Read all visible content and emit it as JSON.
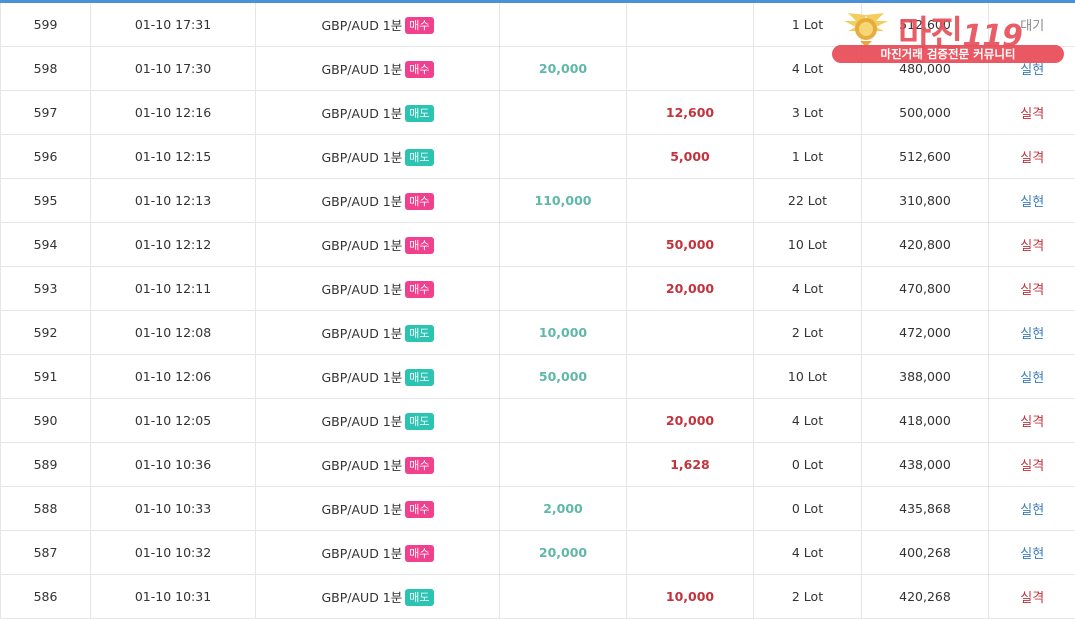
{
  "logo": {
    "brand": "마진",
    "brand_suffix": "119",
    "tagline": "마진거래 검증전문 커뮤니티",
    "color": "#e8505b"
  },
  "colors": {
    "buy_badge": "#f0408e",
    "sell_badge": "#2bc4b2",
    "profit": "#5fb8a8",
    "loss": "#c4323c",
    "status_win": "#3a7cc2"
  },
  "rows": [
    {
      "no": "599",
      "time": "01-10 17:31",
      "pair": "GBP/AUD 1분",
      "side": "매수",
      "side_type": "buy",
      "profit": "",
      "loss": "",
      "lot": "1 Lot",
      "balance": "512,600",
      "status": "대기",
      "status_type": "wait"
    },
    {
      "no": "598",
      "time": "01-10 17:30",
      "pair": "GBP/AUD 1분",
      "side": "매수",
      "side_type": "buy",
      "profit": "20,000",
      "loss": "",
      "lot": "4 Lot",
      "balance": "480,000",
      "status": "실현",
      "status_type": "win"
    },
    {
      "no": "597",
      "time": "01-10 12:16",
      "pair": "GBP/AUD 1분",
      "side": "매도",
      "side_type": "sell",
      "profit": "",
      "loss": "12,600",
      "lot": "3 Lot",
      "balance": "500,000",
      "status": "실격",
      "status_type": "loss"
    },
    {
      "no": "596",
      "time": "01-10 12:15",
      "pair": "GBP/AUD 1분",
      "side": "매도",
      "side_type": "sell",
      "profit": "",
      "loss": "5,000",
      "lot": "1 Lot",
      "balance": "512,600",
      "status": "실격",
      "status_type": "loss"
    },
    {
      "no": "595",
      "time": "01-10 12:13",
      "pair": "GBP/AUD 1분",
      "side": "매수",
      "side_type": "buy",
      "profit": "110,000",
      "loss": "",
      "lot": "22 Lot",
      "balance": "310,800",
      "status": "실현",
      "status_type": "win"
    },
    {
      "no": "594",
      "time": "01-10 12:12",
      "pair": "GBP/AUD 1분",
      "side": "매수",
      "side_type": "buy",
      "profit": "",
      "loss": "50,000",
      "lot": "10 Lot",
      "balance": "420,800",
      "status": "실격",
      "status_type": "loss"
    },
    {
      "no": "593",
      "time": "01-10 12:11",
      "pair": "GBP/AUD 1분",
      "side": "매수",
      "side_type": "buy",
      "profit": "",
      "loss": "20,000",
      "lot": "4 Lot",
      "balance": "470,800",
      "status": "실격",
      "status_type": "loss"
    },
    {
      "no": "592",
      "time": "01-10 12:08",
      "pair": "GBP/AUD 1분",
      "side": "매도",
      "side_type": "sell",
      "profit": "10,000",
      "loss": "",
      "lot": "2 Lot",
      "balance": "472,000",
      "status": "실현",
      "status_type": "win"
    },
    {
      "no": "591",
      "time": "01-10 12:06",
      "pair": "GBP/AUD 1분",
      "side": "매도",
      "side_type": "sell",
      "profit": "50,000",
      "loss": "",
      "lot": "10 Lot",
      "balance": "388,000",
      "status": "실현",
      "status_type": "win"
    },
    {
      "no": "590",
      "time": "01-10 12:05",
      "pair": "GBP/AUD 1분",
      "side": "매도",
      "side_type": "sell",
      "profit": "",
      "loss": "20,000",
      "lot": "4 Lot",
      "balance": "418,000",
      "status": "실격",
      "status_type": "loss"
    },
    {
      "no": "589",
      "time": "01-10 10:36",
      "pair": "GBP/AUD 1분",
      "side": "매수",
      "side_type": "buy",
      "profit": "",
      "loss": "1,628",
      "lot": "0 Lot",
      "balance": "438,000",
      "status": "실격",
      "status_type": "loss"
    },
    {
      "no": "588",
      "time": "01-10 10:33",
      "pair": "GBP/AUD 1분",
      "side": "매수",
      "side_type": "buy",
      "profit": "2,000",
      "loss": "",
      "lot": "0 Lot",
      "balance": "435,868",
      "status": "실현",
      "status_type": "win"
    },
    {
      "no": "587",
      "time": "01-10 10:32",
      "pair": "GBP/AUD 1분",
      "side": "매수",
      "side_type": "buy",
      "profit": "20,000",
      "loss": "",
      "lot": "4 Lot",
      "balance": "400,268",
      "status": "실현",
      "status_type": "win"
    },
    {
      "no": "586",
      "time": "01-10 10:31",
      "pair": "GBP/AUD 1분",
      "side": "매도",
      "side_type": "sell",
      "profit": "",
      "loss": "10,000",
      "lot": "2 Lot",
      "balance": "420,268",
      "status": "실격",
      "status_type": "loss"
    }
  ]
}
